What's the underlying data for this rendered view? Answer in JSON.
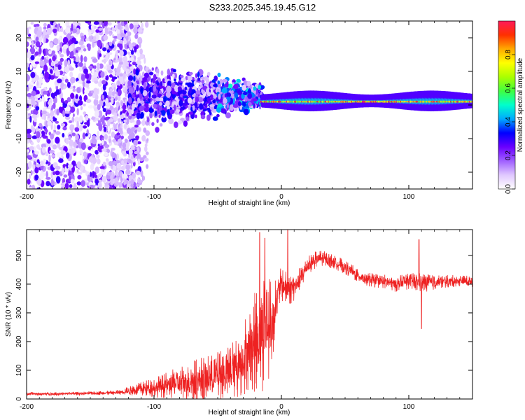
{
  "title": "S233.2025.345.19.45.G12",
  "chart_data": [
    {
      "type": "heatmap",
      "xlabel": "Height of straight line (km)",
      "ylabel": "Frequency (Hz)",
      "xlim": [
        -200,
        150
      ],
      "ylim": [
        -25,
        25
      ],
      "x_ticks": [
        -200,
        -100,
        0,
        100
      ],
      "y_ticks": [
        -20,
        -10,
        0,
        10,
        20
      ],
      "colorbar": {
        "label": "Normalized spectral amplitude",
        "range": [
          0,
          1
        ],
        "ticks": [
          0.0,
          0.2,
          0.4,
          0.6,
          0.8
        ],
        "tick_labels": [
          "0.0",
          "0.2",
          "0.4",
          "0.6",
          "0.8"
        ],
        "colors": [
          "#ffffff",
          "#e0c8ff",
          "#a060ff",
          "#6a00ff",
          "#0000ff",
          "#00aaff",
          "#00ffcc",
          "#40ff40",
          "#aaff00",
          "#ffff00",
          "#ffaa00",
          "#ff3000",
          "#ff1a5a"
        ]
      },
      "regions": [
        {
          "x_range": [
            -200,
            -120
          ],
          "freq_spread": 25,
          "amplitude": [
            0.05,
            0.3
          ],
          "note": "scattered broadband noise"
        },
        {
          "x_range": [
            -120,
            -50
          ],
          "freq_spread": 7,
          "amplitude": [
            0.15,
            0.35
          ],
          "note": "narrowing band"
        },
        {
          "x_range": [
            -50,
            -15
          ],
          "freq_spread": 4,
          "amplitude": [
            0.2,
            0.5
          ],
          "note": "converging band"
        },
        {
          "x_range": [
            -15,
            150
          ],
          "freq_center": 1,
          "amplitude": [
            0.6,
            1.0
          ],
          "note": "narrow strong line near 1 Hz"
        }
      ]
    },
    {
      "type": "line",
      "xlabel": "Height of straight line (km)",
      "ylabel": "SNR (10 * v/v)",
      "xlim": [
        -200,
        150
      ],
      "ylim": [
        0,
        590
      ],
      "x_ticks": [
        -200,
        -100,
        0,
        100
      ],
      "y_ticks": [
        0,
        100,
        200,
        300,
        400,
        500
      ],
      "color": "#ee2222",
      "series": [
        {
          "name": "SNR",
          "x": [
            -200,
            -175,
            -150,
            -130,
            -120,
            -110,
            -100,
            -90,
            -80,
            -70,
            -60,
            -50,
            -40,
            -30,
            -25,
            -20,
            -15,
            -10,
            -7,
            -5,
            -2,
            0,
            5,
            10,
            15,
            20,
            25,
            30,
            35,
            40,
            50,
            60,
            70,
            80,
            90,
            100,
            110,
            120,
            130,
            140,
            150
          ],
          "mean": [
            18,
            18,
            20,
            22,
            28,
            35,
            40,
            48,
            55,
            62,
            70,
            80,
            95,
            140,
            180,
            200,
            240,
            250,
            260,
            320,
            380,
            400,
            380,
            390,
            420,
            460,
            480,
            490,
            485,
            480,
            460,
            430,
            415,
            410,
            400,
            410,
            405,
            405,
            410,
            412,
            410
          ],
          "noise": [
            6,
            6,
            6,
            8,
            15,
            25,
            35,
            45,
            60,
            75,
            80,
            85,
            100,
            130,
            150,
            180,
            220,
            180,
            150,
            90,
            70,
            60,
            60,
            50,
            40,
            35,
            30,
            30,
            28,
            25,
            25,
            25,
            25,
            25,
            28,
            28,
            35,
            25,
            22,
            20,
            20
          ],
          "peaks": [
            [
              -17,
              580
            ],
            [
              -13,
              560
            ],
            [
              5,
              590
            ],
            [
              108,
              555
            ],
            [
              110,
              245
            ]
          ]
        }
      ]
    }
  ]
}
